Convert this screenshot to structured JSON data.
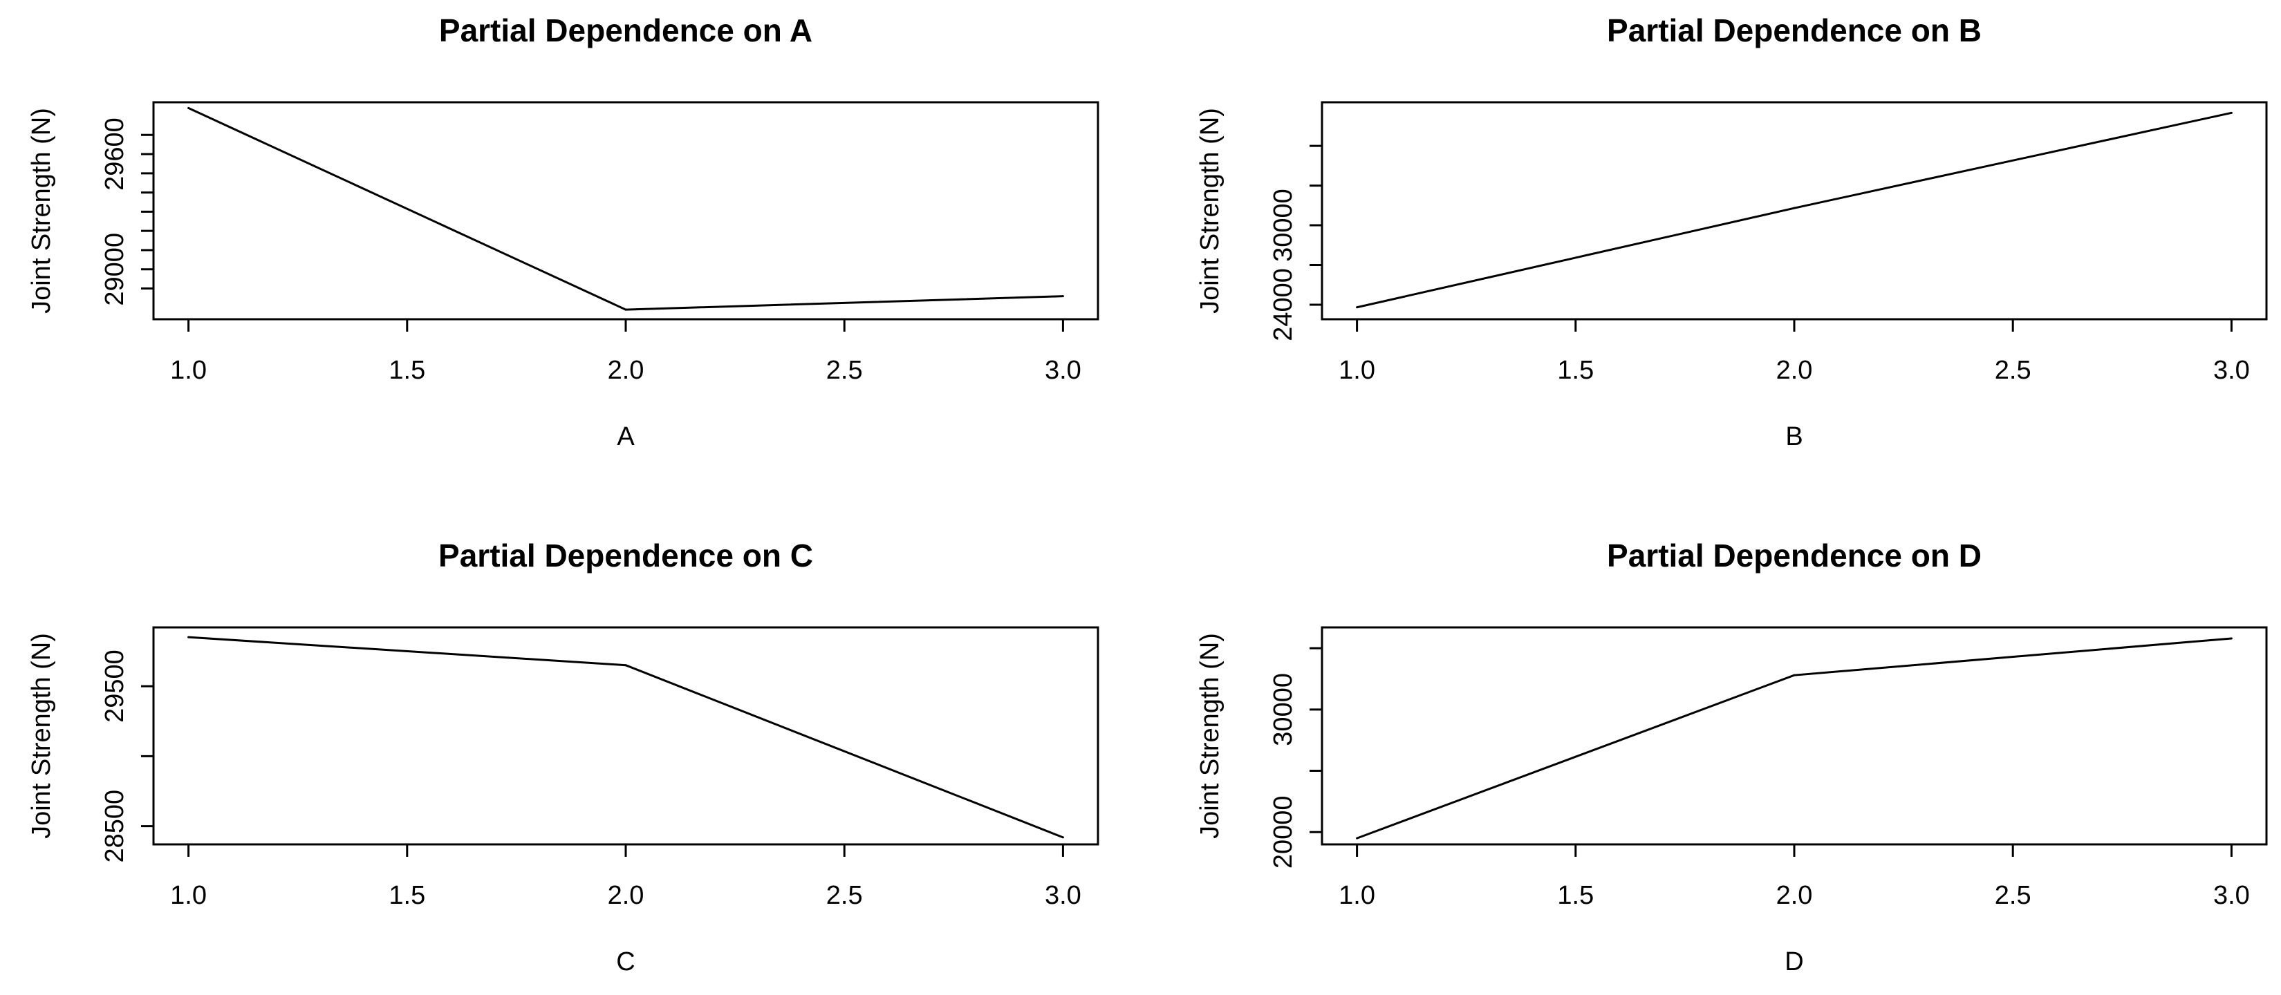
{
  "chart_data": [
    {
      "type": "line",
      "title": "Partial Dependence on A",
      "xlabel": "A",
      "ylabel": "Joint Strength (N)",
      "x": [
        1.0,
        2.0,
        3.0
      ],
      "values": [
        29840,
        28790,
        28860
      ],
      "xlim": [
        0.92,
        3.08
      ],
      "ylim": [
        28740,
        29870
      ],
      "xticks": [
        1.0,
        1.5,
        2.0,
        2.5,
        3.0
      ],
      "xtick_labels": [
        "1.0",
        "1.5",
        "2.0",
        "2.5",
        "3.0"
      ],
      "yticks": [
        28900,
        29000,
        29100,
        29200,
        29300,
        29400,
        29500,
        29600,
        29700
      ],
      "ytick_labels": [
        "",
        "29000",
        "",
        "",
        "",
        "",
        "",
        "29600",
        ""
      ],
      "grid": false
    },
    {
      "type": "line",
      "title": "Partial Dependence on B",
      "xlabel": "B",
      "ylabel": "Joint Strength (N)",
      "x": [
        1.0,
        2.0,
        3.0
      ],
      "values": [
        23800,
        31300,
        38500
      ],
      "xlim": [
        0.92,
        3.08
      ],
      "ylim": [
        22900,
        39300
      ],
      "xticks": [
        1.0,
        1.5,
        2.0,
        2.5,
        3.0
      ],
      "xtick_labels": [
        "1.0",
        "1.5",
        "2.0",
        "2.5",
        "3.0"
      ],
      "yticks": [
        24000,
        27000,
        30000,
        33000,
        36000
      ],
      "ytick_labels": [
        "24000",
        "",
        "30000",
        "",
        ""
      ],
      "grid": false
    },
    {
      "type": "line",
      "title": "Partial Dependence on C",
      "xlabel": "C",
      "ylabel": "Joint Strength (N)",
      "x": [
        1.0,
        2.0,
        3.0
      ],
      "values": [
        29850,
        29650,
        28420
      ],
      "xlim": [
        0.92,
        3.08
      ],
      "ylim": [
        28370,
        29920
      ],
      "xticks": [
        1.0,
        1.5,
        2.0,
        2.5,
        3.0
      ],
      "xtick_labels": [
        "1.0",
        "1.5",
        "2.0",
        "2.5",
        "3.0"
      ],
      "yticks": [
        28500,
        29000,
        29500
      ],
      "ytick_labels": [
        "28500",
        "",
        "29500"
      ],
      "grid": false
    },
    {
      "type": "line",
      "title": "Partial Dependence on D",
      "xlabel": "D",
      "ylabel": "Joint Strength (N)",
      "x": [
        1.0,
        2.0,
        3.0
      ],
      "values": [
        19500,
        32800,
        35800
      ],
      "xlim": [
        0.92,
        3.08
      ],
      "ylim": [
        19000,
        36700
      ],
      "xticks": [
        1.0,
        1.5,
        2.0,
        2.5,
        3.0
      ],
      "xtick_labels": [
        "1.0",
        "1.5",
        "2.0",
        "2.5",
        "3.0"
      ],
      "yticks": [
        20000,
        25000,
        30000,
        35000
      ],
      "ytick_labels": [
        "20000",
        "",
        "30000",
        ""
      ],
      "grid": false
    }
  ]
}
